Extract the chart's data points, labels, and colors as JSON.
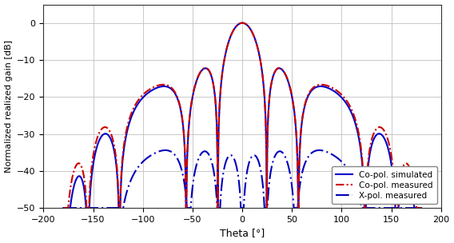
{
  "xlabel": "Theta [°]",
  "ylabel": "Normalized realized gain [dB]",
  "xlim": [
    -200,
    200
  ],
  "ylim": [
    -50,
    5
  ],
  "xticks": [
    -200,
    -150,
    -100,
    -50,
    0,
    50,
    100,
    150,
    200
  ],
  "yticks": [
    0,
    -10,
    -20,
    -30,
    -40,
    -50
  ],
  "grid_color": "#c0c0c0",
  "bg_color": "#ffffff",
  "copol_sim_color": "#0000cc",
  "copol_meas_color": "#cc0000",
  "xpol_meas_color": "#0000bb",
  "legend_entries": [
    "Co-pol. simulated",
    "Co-pol. measured",
    "X-pol. measured"
  ],
  "figsize": [
    5.68,
    3.04
  ],
  "dpi": 100
}
